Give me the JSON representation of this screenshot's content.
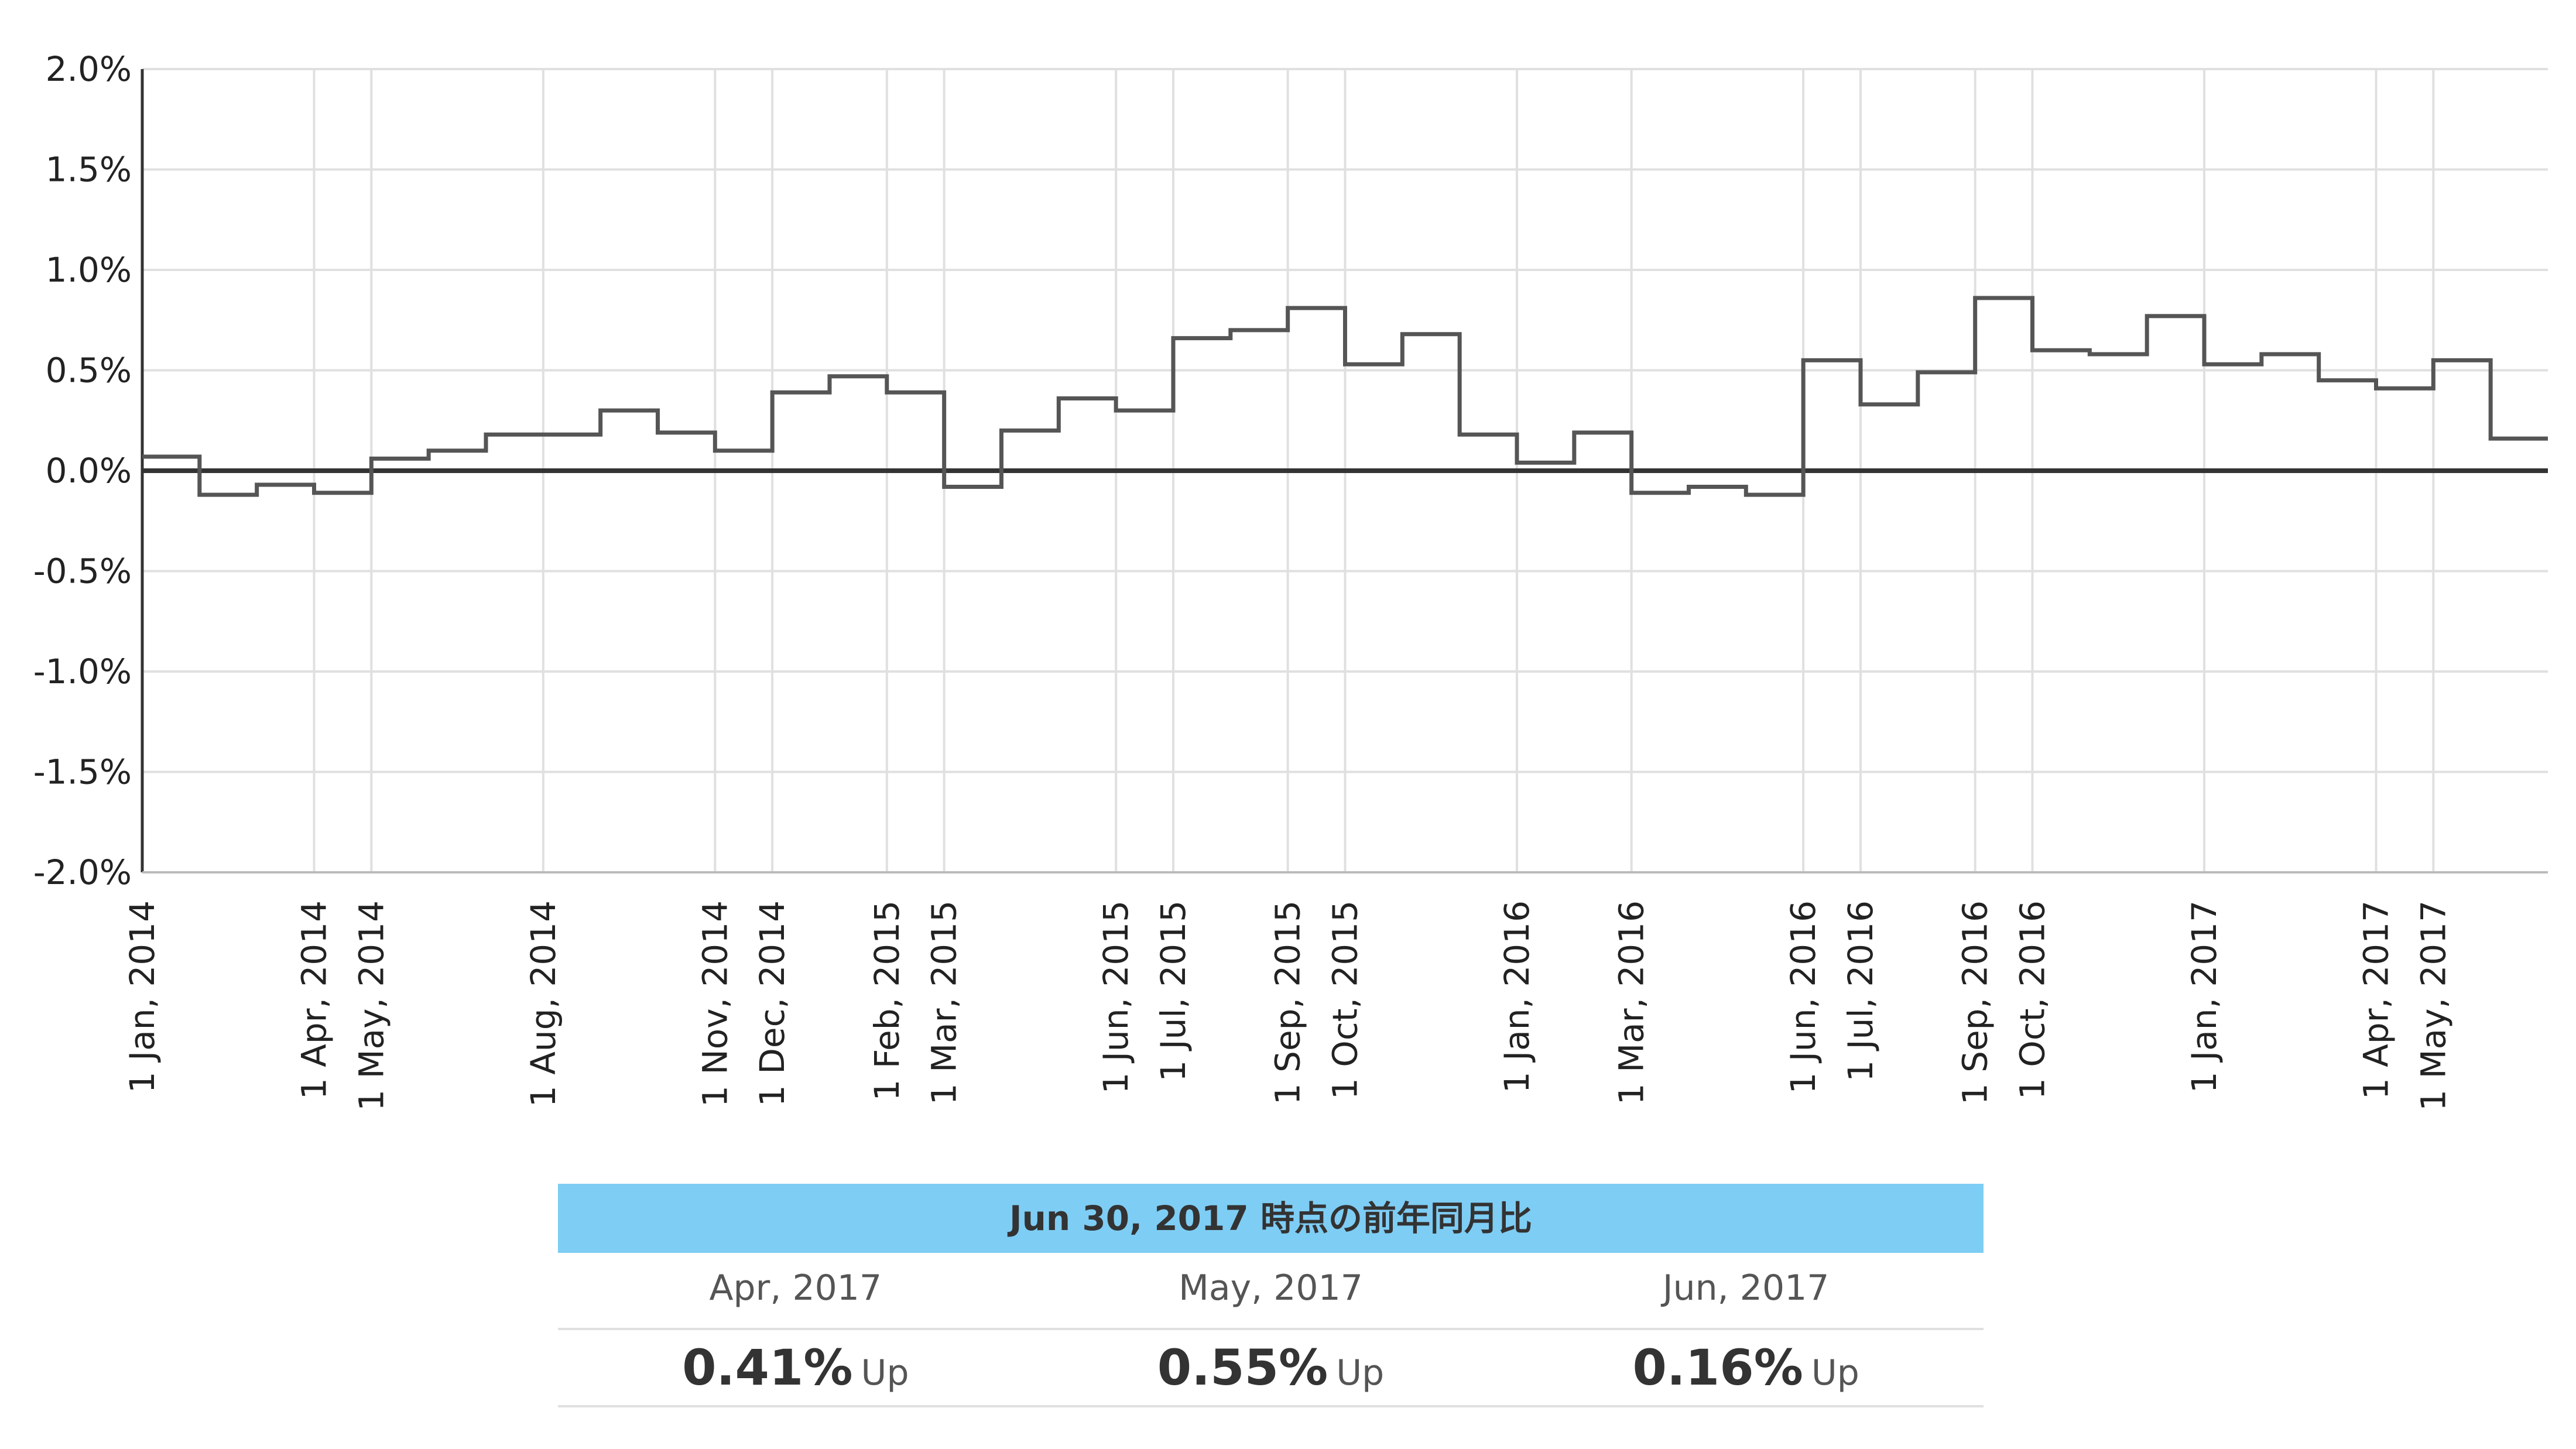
{
  "chart_data": {
    "type": "line",
    "step": true,
    "title": "",
    "xlabel": "",
    "ylabel": "",
    "ylim": [
      -2.0,
      2.0
    ],
    "y_ticks": [
      "2.0%",
      "1.5%",
      "1.0%",
      "0.5%",
      "0.0%",
      "-0.5%",
      "-1.0%",
      "-1.5%",
      "-2.0%"
    ],
    "y_tick_values": [
      2.0,
      1.5,
      1.0,
      0.5,
      0.0,
      -0.5,
      -1.0,
      -1.5,
      -2.0
    ],
    "x_start": "2014-01",
    "x_end": "2017-07",
    "x_ticks": [
      {
        "label": "1 Jan, 2014",
        "month_index": 0
      },
      {
        "label": "1 Apr, 2014",
        "month_index": 3
      },
      {
        "label": "1 May, 2014",
        "month_index": 4
      },
      {
        "label": "1 Aug, 2014",
        "month_index": 7
      },
      {
        "label": "1 Nov, 2014",
        "month_index": 10
      },
      {
        "label": "1 Dec, 2014",
        "month_index": 11
      },
      {
        "label": "1 Feb, 2015",
        "month_index": 13
      },
      {
        "label": "1 Mar, 2015",
        "month_index": 14
      },
      {
        "label": "1 Jun, 2015",
        "month_index": 17
      },
      {
        "label": "1 Jul, 2015",
        "month_index": 18
      },
      {
        "label": "1 Sep, 2015",
        "month_index": 20
      },
      {
        "label": "1 Oct, 2015",
        "month_index": 21
      },
      {
        "label": "1 Jan, 2016",
        "month_index": 24
      },
      {
        "label": "1 Mar, 2016",
        "month_index": 26
      },
      {
        "label": "1 Jun, 2016",
        "month_index": 29
      },
      {
        "label": "1 Jul, 2016",
        "month_index": 30
      },
      {
        "label": "1 Sep, 2016",
        "month_index": 32
      },
      {
        "label": "1 Oct, 2016",
        "month_index": 33
      },
      {
        "label": "1 Jan, 2017",
        "month_index": 36
      },
      {
        "label": "1 Apr, 2017",
        "month_index": 39
      },
      {
        "label": "1 May, 2017",
        "month_index": 40
      }
    ],
    "series": [
      {
        "name": "前年同月比",
        "color": "#555555",
        "months": [
          "2014-01",
          "2014-02",
          "2014-03",
          "2014-04",
          "2014-05",
          "2014-06",
          "2014-07",
          "2014-08",
          "2014-09",
          "2014-10",
          "2014-11",
          "2014-12",
          "2015-01",
          "2015-02",
          "2015-03",
          "2015-04",
          "2015-05",
          "2015-06",
          "2015-07",
          "2015-08",
          "2015-09",
          "2015-10",
          "2015-11",
          "2015-12",
          "2016-01",
          "2016-02",
          "2016-03",
          "2016-04",
          "2016-05",
          "2016-06",
          "2016-07",
          "2016-08",
          "2016-09",
          "2016-10",
          "2016-11",
          "2016-12",
          "2017-01",
          "2017-02",
          "2017-03",
          "2017-04",
          "2017-05",
          "2017-06"
        ],
        "values": [
          0.07,
          -0.12,
          -0.07,
          -0.11,
          0.06,
          0.1,
          0.18,
          0.18,
          0.3,
          0.19,
          0.1,
          0.39,
          0.47,
          0.39,
          -0.08,
          0.2,
          0.36,
          0.3,
          0.66,
          0.7,
          0.81,
          0.53,
          0.68,
          0.18,
          0.04,
          0.19,
          -0.11,
          -0.08,
          -0.12,
          0.55,
          0.33,
          0.49,
          0.86,
          0.6,
          0.58,
          0.77,
          0.53,
          0.58,
          0.45,
          0.41,
          0.55,
          0.16
        ]
      }
    ],
    "zero_line": true,
    "grid": true
  },
  "summary": {
    "header": "Jun 30, 2017 時点の前年同月比",
    "months": [
      "Apr, 2017",
      "May, 2017",
      "Jun, 2017"
    ],
    "values": [
      "0.41%",
      "0.55%",
      "0.16%"
    ],
    "directions": [
      "Up",
      "Up",
      "Up"
    ]
  },
  "colors": {
    "line": "#555555",
    "grid": "#e0e0e0",
    "axis": "#333333",
    "header_bg": "#7ecdf4"
  }
}
